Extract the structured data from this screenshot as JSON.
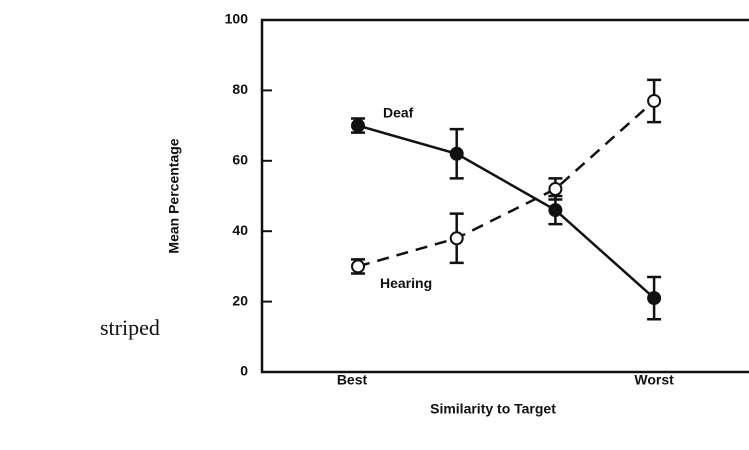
{
  "chart_data": {
    "type": "line",
    "side_text": "striped",
    "xlabel": "Similarity to Target",
    "ylabel": "Mean Percentage",
    "categories": [
      "Best",
      null,
      null,
      "Worst"
    ],
    "series": [
      {
        "name": "Deaf",
        "color": "#111111",
        "dashed": false,
        "marker": "filled",
        "values": [
          70,
          62,
          46,
          21
        ],
        "errors": [
          2,
          7,
          4,
          6
        ]
      },
      {
        "name": "Hearing",
        "color": "#111111",
        "dashed": true,
        "marker": "open",
        "values": [
          30,
          38,
          52,
          77
        ],
        "errors": [
          2,
          7,
          3,
          6
        ]
      }
    ],
    "ylim": [
      0,
      100
    ],
    "yticks": [
      0,
      20,
      40,
      60,
      80,
      100
    ],
    "grid": false
  }
}
